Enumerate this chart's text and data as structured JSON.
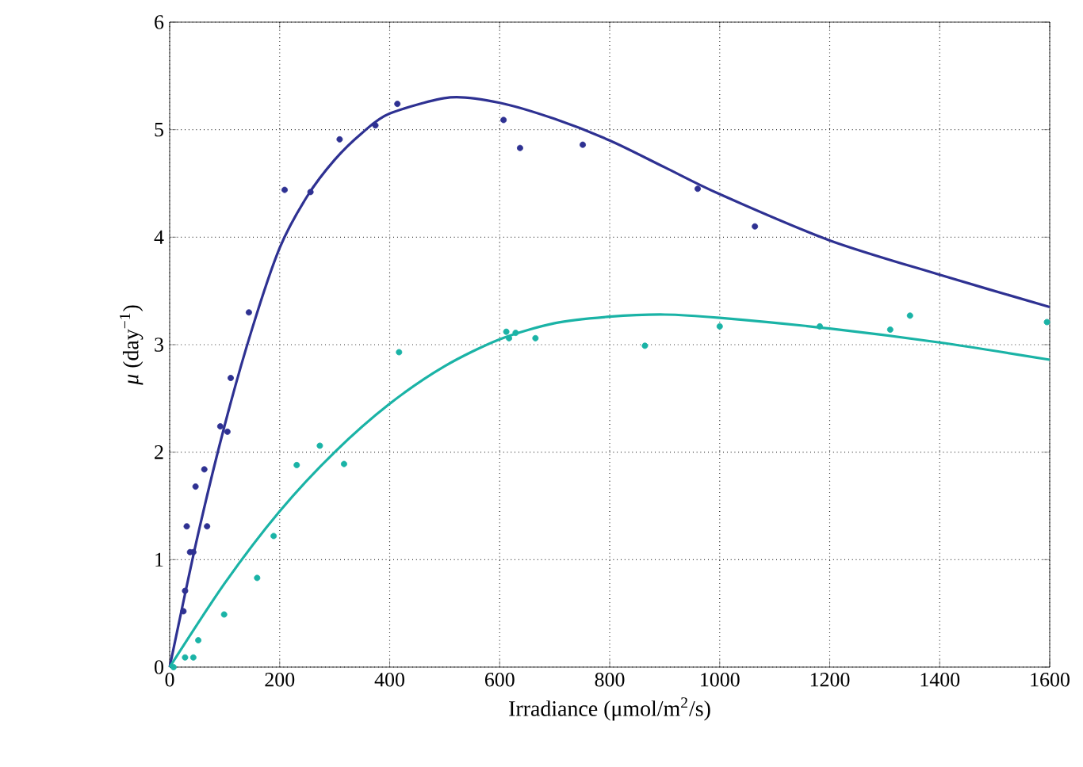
{
  "chart_data": {
    "type": "scatter",
    "xlabel": "Irradiance (μmol/m$^{2}$/s)",
    "ylabel": "*μ* (day$^{−1}$)",
    "xlim": [
      0,
      1600
    ],
    "ylim": [
      0,
      6
    ],
    "xticks": [
      0,
      200,
      400,
      600,
      800,
      1000,
      1200,
      1400,
      1600
    ],
    "yticks": [
      0,
      1,
      2,
      3,
      4,
      5,
      6
    ],
    "grid": true,
    "marker": "circle",
    "series": [
      {
        "color": "#2e3192",
        "x": [
          25,
          28,
          31,
          37,
          43,
          47,
          63,
          68,
          92,
          105,
          111,
          144,
          209,
          256,
          309,
          374,
          414,
          607,
          637,
          751,
          960,
          1064
        ],
        "values": [
          0.52,
          0.71,
          1.31,
          1.07,
          1.07,
          1.68,
          1.84,
          1.31,
          2.24,
          2.19,
          2.69,
          3.3,
          4.44,
          4.42,
          4.91,
          5.04,
          5.24,
          5.09,
          4.83,
          4.86,
          4.45,
          4.1
        ]
      },
      {
        "color": "#1ab3a6",
        "x": [
          7,
          28,
          43,
          52,
          99,
          159,
          189,
          231,
          273,
          317,
          417,
          612,
          617,
          629,
          665,
          864,
          1000,
          1182,
          1310,
          1346,
          1595
        ],
        "values": [
          0,
          0.09,
          0.09,
          0.25,
          0.49,
          0.83,
          1.22,
          1.88,
          2.06,
          1.89,
          2.93,
          3.12,
          3.06,
          3.11,
          3.06,
          2.99,
          3.17,
          3.17,
          3.14,
          3.27,
          3.21
        ]
      },
      {
        "type": "line",
        "color": "#2e3192",
        "marker": "none",
        "x": [
          0,
          50,
          100,
          150,
          200,
          250,
          300,
          350,
          400,
          510,
          600,
          700,
          800,
          900,
          1000,
          1200,
          1400,
          1600
        ],
        "values": [
          0,
          1.2,
          2.25,
          3.15,
          3.9,
          4.38,
          4.72,
          4.97,
          5.15,
          5.3,
          5.25,
          5.1,
          4.9,
          4.65,
          4.4,
          3.97,
          3.65,
          3.35
        ]
      },
      {
        "type": "line",
        "color": "#1ab3a6",
        "marker": "none",
        "x": [
          0,
          100,
          200,
          300,
          400,
          500,
          600,
          700,
          800,
          900,
          1000,
          1200,
          1400,
          1600
        ],
        "values": [
          0,
          0.78,
          1.45,
          2.0,
          2.45,
          2.8,
          3.05,
          3.2,
          3.26,
          3.28,
          3.25,
          3.15,
          3.02,
          2.86
        ]
      }
    ]
  }
}
